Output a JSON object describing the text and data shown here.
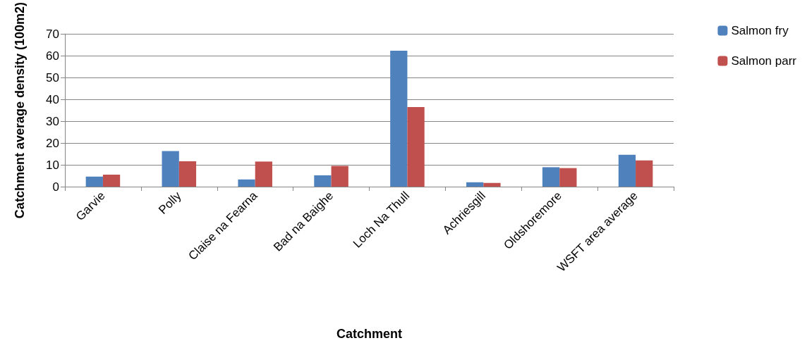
{
  "chart_data": {
    "type": "bar",
    "xlabel": "Catchment",
    "ylabel": "Catchment average density (100m2)",
    "categories": [
      "Garvie",
      "Polly",
      "Claise na Fearna",
      "Bad na Baighe",
      "Loch Na Thull",
      "Achriesgill",
      "Oldshoremore",
      "WSFT area average"
    ],
    "series": [
      {
        "name": "Salmon fry",
        "color": "#4f81bd",
        "values": [
          4.6,
          16.3,
          3.3,
          5.2,
          62.3,
          2.0,
          8.9,
          14.6
        ]
      },
      {
        "name": "Salmon parr",
        "color": "#c0504d",
        "values": [
          5.5,
          11.6,
          11.5,
          9.5,
          36.5,
          1.7,
          8.5,
          12.0
        ]
      }
    ],
    "ylim": [
      0,
      70
    ],
    "yticks": [
      0,
      10,
      20,
      30,
      40,
      50,
      60,
      70
    ],
    "grid": "y",
    "legend": "right"
  }
}
